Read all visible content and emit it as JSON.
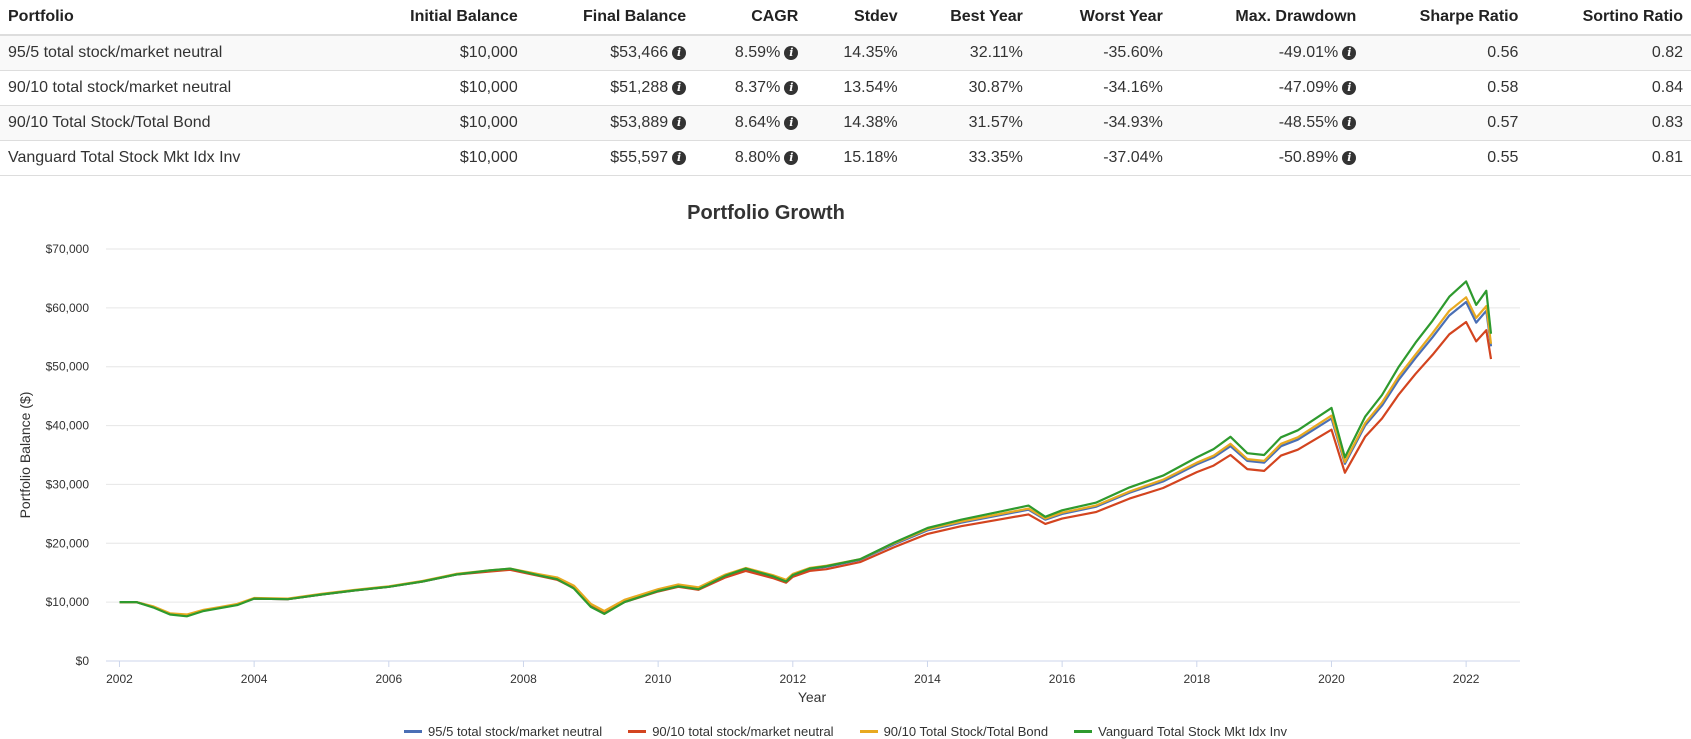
{
  "table": {
    "headers": [
      "Portfolio",
      "Initial Balance",
      "Final Balance",
      "CAGR",
      "Stdev",
      "Best Year",
      "Worst Year",
      "Max. Drawdown",
      "Sharpe Ratio",
      "Sortino Ratio"
    ],
    "rows": [
      {
        "portfolio": "95/5 total stock/market neutral",
        "initial": "$10,000",
        "final": "$53,466",
        "cagr": "8.59%",
        "stdev": "14.35%",
        "best": "32.11%",
        "worst": "-35.60%",
        "maxdd": "-49.01%",
        "sharpe": "0.56",
        "sortino": "0.82"
      },
      {
        "portfolio": "90/10 total stock/market neutral",
        "initial": "$10,000",
        "final": "$51,288",
        "cagr": "8.37%",
        "stdev": "13.54%",
        "best": "30.87%",
        "worst": "-34.16%",
        "maxdd": "-47.09%",
        "sharpe": "0.58",
        "sortino": "0.84"
      },
      {
        "portfolio": "90/10 Total Stock/Total Bond",
        "initial": "$10,000",
        "final": "$53,889",
        "cagr": "8.64%",
        "stdev": "14.38%",
        "best": "31.57%",
        "worst": "-34.93%",
        "maxdd": "-48.55%",
        "sharpe": "0.57",
        "sortino": "0.83"
      },
      {
        "portfolio": "Vanguard Total Stock Mkt Idx Inv",
        "initial": "$10,000",
        "final": "$55,597",
        "cagr": "8.80%",
        "stdev": "15.18%",
        "best": "33.35%",
        "worst": "-37.04%",
        "maxdd": "-50.89%",
        "sharpe": "0.55",
        "sortino": "0.81"
      }
    ],
    "info_icon": "info-circle-icon"
  },
  "chart_data": {
    "type": "line",
    "title": "Portfolio Growth",
    "xlabel": "Year",
    "ylabel": "Portfolio Balance ($)",
    "xlim": [
      2001.8,
      2022.8
    ],
    "ylim": [
      0,
      70000
    ],
    "xticks": [
      2002,
      2004,
      2006,
      2008,
      2010,
      2012,
      2014,
      2016,
      2018,
      2020,
      2022
    ],
    "xtick_labels": [
      "2002",
      "2004",
      "2006",
      "2008",
      "2010",
      "2012",
      "2014",
      "2016",
      "2018",
      "2020",
      "2022"
    ],
    "yticks": [
      0,
      10000,
      20000,
      30000,
      40000,
      50000,
      60000,
      70000
    ],
    "ytick_labels": [
      "$0",
      "$10,000",
      "$20,000",
      "$30,000",
      "$40,000",
      "$50,000",
      "$60,000",
      "$70,000"
    ],
    "grid": true,
    "legend_position": "bottom",
    "x": [
      2002.0,
      2002.25,
      2002.5,
      2002.75,
      2003.0,
      2003.25,
      2003.5,
      2003.75,
      2004.0,
      2004.5,
      2005.0,
      2005.5,
      2006.0,
      2006.5,
      2007.0,
      2007.5,
      2007.8,
      2008.25,
      2008.5,
      2008.75,
      2009.0,
      2009.2,
      2009.5,
      2010.0,
      2010.3,
      2010.6,
      2011.0,
      2011.3,
      2011.7,
      2011.9,
      2012.0,
      2012.25,
      2012.5,
      2013.0,
      2013.5,
      2014.0,
      2014.5,
      2015.0,
      2015.5,
      2015.75,
      2016.0,
      2016.5,
      2017.0,
      2017.5,
      2018.0,
      2018.25,
      2018.5,
      2018.75,
      2019.0,
      2019.25,
      2019.5,
      2020.0,
      2020.2,
      2020.5,
      2020.75,
      2021.0,
      2021.25,
      2021.5,
      2021.75,
      2022.0,
      2022.15,
      2022.3,
      2022.37
    ],
    "series": [
      {
        "name": "95/5 total stock/market neutral",
        "color": "#4a6fb5",
        "values": [
          10000,
          10000,
          9200,
          8000,
          7800,
          8600,
          9100,
          9600,
          10600,
          10500,
          11300,
          12000,
          12600,
          13500,
          14700,
          15300,
          15600,
          14500,
          14000,
          12600,
          9500,
          8300,
          10200,
          12000,
          12800,
          12300,
          14500,
          15600,
          14400,
          13600,
          14600,
          15600,
          16000,
          17200,
          19800,
          22200,
          23500,
          24600,
          25700,
          24000,
          25000,
          26200,
          28600,
          30500,
          33400,
          34600,
          36500,
          34000,
          33700,
          36500,
          37600,
          41200,
          33500,
          40000,
          43400,
          47800,
          51500,
          55000,
          58700,
          61000,
          57500,
          59500,
          53466
        ]
      },
      {
        "name": "90/10 total stock/market neutral",
        "color": "#d3441f",
        "values": [
          10000,
          10000,
          9200,
          8000,
          7800,
          8600,
          9100,
          9600,
          10600,
          10500,
          11300,
          12000,
          12600,
          13500,
          14700,
          15200,
          15500,
          14400,
          13800,
          12400,
          9300,
          8200,
          10000,
          11800,
          12600,
          12100,
          14200,
          15300,
          14100,
          13300,
          14300,
          15300,
          15600,
          16800,
          19300,
          21600,
          22900,
          23900,
          24900,
          23300,
          24200,
          25300,
          27600,
          29400,
          32100,
          33200,
          35000,
          32600,
          32300,
          34900,
          35900,
          39300,
          32000,
          38100,
          41200,
          45300,
          48800,
          52000,
          55500,
          57600,
          54300,
          56200,
          51288
        ]
      },
      {
        "name": "90/10 Total Stock/Total Bond",
        "color": "#e8a920",
        "values": [
          10000,
          10000,
          9300,
          8100,
          7900,
          8700,
          9200,
          9700,
          10700,
          10600,
          11400,
          12100,
          12700,
          13600,
          14800,
          15400,
          15700,
          14700,
          14200,
          12800,
          9700,
          8500,
          10400,
          12200,
          13000,
          12500,
          14700,
          15800,
          14600,
          13800,
          14800,
          15800,
          16200,
          17300,
          20000,
          22400,
          23700,
          24800,
          25900,
          24200,
          25200,
          26400,
          28800,
          30800,
          33700,
          34900,
          36900,
          34300,
          34000,
          36900,
          38000,
          41700,
          33800,
          40400,
          43900,
          48400,
          52100,
          55700,
          59500,
          61800,
          58300,
          60300,
          53889
        ]
      },
      {
        "name": "Vanguard Total Stock Mkt Idx Inv",
        "color": "#2e9a2e",
        "values": [
          10000,
          10000,
          9100,
          7900,
          7600,
          8500,
          9000,
          9500,
          10600,
          10500,
          11300,
          12000,
          12600,
          13500,
          14700,
          15400,
          15700,
          14500,
          13900,
          12300,
          9200,
          8000,
          10000,
          11900,
          12700,
          12200,
          14500,
          15700,
          14400,
          13500,
          14600,
          15700,
          16100,
          17300,
          20100,
          22600,
          24000,
          25200,
          26400,
          24500,
          25600,
          26900,
          29500,
          31500,
          34600,
          36000,
          38100,
          35300,
          35000,
          38000,
          39200,
          43000,
          34600,
          41500,
          45200,
          50000,
          54100,
          57800,
          61900,
          64500,
          60500,
          62900,
          55597
        ]
      }
    ]
  }
}
